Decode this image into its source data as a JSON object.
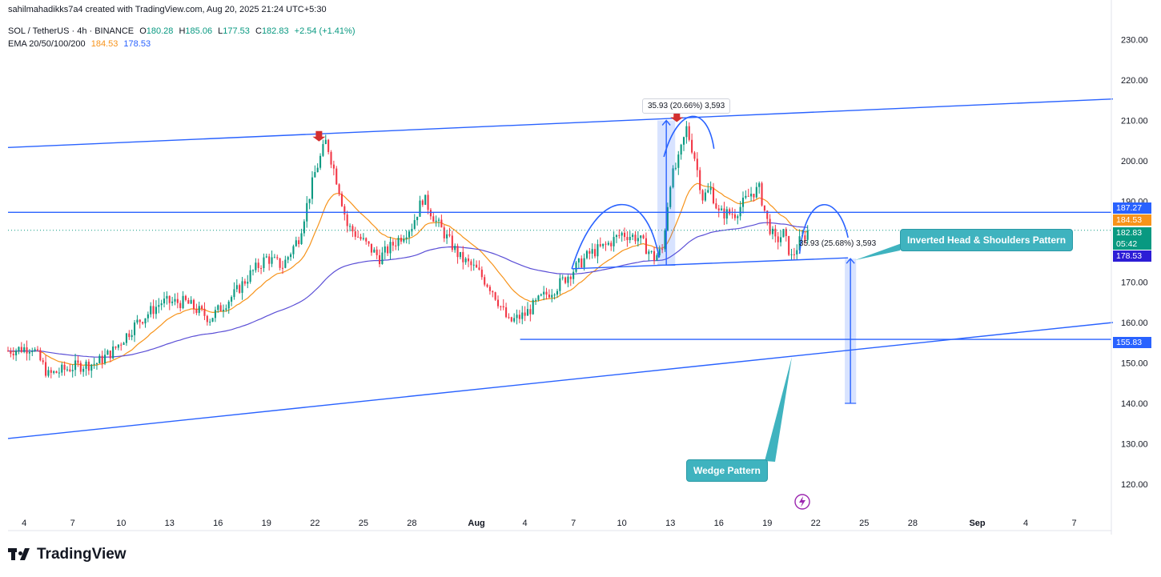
{
  "header": {
    "credit": "sahilmahadikks7a4 created with TradingView.com, Aug 20, 2025 21:24 UTC+5:30",
    "symbol": "SOL / TetherUS · 4h · BINANCE",
    "open_label": "O",
    "open": "180.28",
    "high_label": "H",
    "high": "185.06",
    "low_label": "L",
    "low": "177.53",
    "close_label": "C",
    "close": "182.83",
    "change": "+2.54 (+1.41%)",
    "ema_label": "EMA 20/50/100/200",
    "ema_fast": "184.53",
    "ema_slow": "178.53"
  },
  "footer": {
    "brand": "TradingView"
  },
  "annotations": {
    "ihs": "Inverted Head & Shoulders Pattern",
    "wedge": "Wedge Pattern",
    "measure_top": "35.93 (20.66%) 3,593",
    "measure_mid": "35.93 (25.68%) 3,593"
  },
  "price_tags": {
    "resistance": "187.27",
    "ema_fast": "184.53",
    "last": "182.83",
    "countdown": "05:42",
    "ema_slow": "178.53",
    "support": "155.83"
  },
  "colors": {
    "up": "#089981",
    "down": "#f23645",
    "trend": "#2962ff",
    "ema_fast": "#f7931a",
    "ema_slow": "#5b4fd6",
    "callout": "#3fb3bf"
  },
  "chart_data": {
    "type": "candlestick",
    "title": "SOL / TetherUS · 4h · BINANCE",
    "y_ticks": [
      "230.00",
      "220.00",
      "210.00",
      "200.00",
      "190.00",
      "180.00",
      "170.00",
      "160.00",
      "150.00",
      "140.00",
      "130.00",
      "120.00"
    ],
    "ylim": [
      116,
      233
    ],
    "x_ticks": [
      "4",
      "7",
      "10",
      "13",
      "16",
      "19",
      "22",
      "25",
      "28",
      "Aug",
      "4",
      "7",
      "10",
      "13",
      "16",
      "19",
      "22",
      "25",
      "28",
      "Sep",
      "4",
      "7"
    ],
    "x_tick_days": [
      4,
      7,
      10,
      13,
      16,
      19,
      22,
      25,
      28,
      32,
      35,
      38,
      41,
      44,
      47,
      50,
      53,
      56,
      59,
      63,
      66,
      69
    ],
    "xlim": [
      3.0,
      71.3
    ],
    "price_path": [
      [
        3.0,
        153
      ],
      [
        4.5,
        154
      ],
      [
        5.5,
        147
      ],
      [
        7.0,
        149
      ],
      [
        8.5,
        150
      ],
      [
        9.5,
        153
      ],
      [
        11.0,
        160
      ],
      [
        12.5,
        165
      ],
      [
        14.0,
        165
      ],
      [
        15.5,
        161
      ],
      [
        17.0,
        167
      ],
      [
        18.0,
        172
      ],
      [
        19.0,
        176
      ],
      [
        20.0,
        174
      ],
      [
        21.0,
        181
      ],
      [
        22.0,
        197
      ],
      [
        22.7,
        205
      ],
      [
        23.5,
        193
      ],
      [
        24.0,
        184
      ],
      [
        25.0,
        180
      ],
      [
        26.0,
        176
      ],
      [
        27.0,
        180
      ],
      [
        28.0,
        184
      ],
      [
        28.7,
        191
      ],
      [
        29.5,
        185
      ],
      [
        31.0,
        176
      ],
      [
        32.0,
        173
      ],
      [
        33.0,
        168
      ],
      [
        34.0,
        160
      ],
      [
        35.0,
        162
      ],
      [
        36.0,
        166
      ],
      [
        37.0,
        169
      ],
      [
        38.0,
        173
      ],
      [
        39.0,
        177
      ],
      [
        40.0,
        179
      ],
      [
        41.0,
        182
      ],
      [
        42.0,
        181
      ],
      [
        43.0,
        176
      ],
      [
        43.5,
        178
      ],
      [
        44.0,
        195
      ],
      [
        44.5,
        200
      ],
      [
        45.0,
        208
      ],
      [
        45.5,
        201
      ],
      [
        46.0,
        191
      ],
      [
        46.5,
        193
      ],
      [
        47.0,
        187
      ],
      [
        48.0,
        187
      ],
      [
        49.0,
        192
      ],
      [
        49.5,
        193
      ],
      [
        50.0,
        185
      ],
      [
        50.5,
        180
      ],
      [
        51.0,
        182
      ],
      [
        51.5,
        176
      ],
      [
        52.0,
        180
      ],
      [
        52.6,
        182.83
      ]
    ]
  }
}
